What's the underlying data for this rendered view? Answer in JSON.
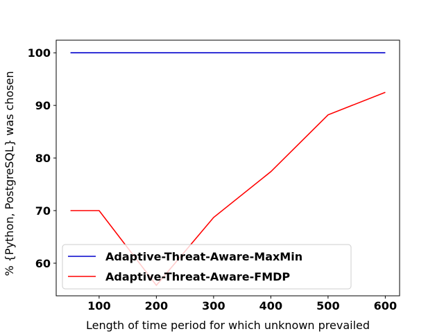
{
  "chart_data": {
    "type": "line",
    "title": "",
    "xlabel": "Length of time period for which unknown prevailed",
    "ylabel": "% {Python, PostgreSQL} was chosen",
    "xlim": [
      25,
      625
    ],
    "ylim": [
      53.8,
      102.4
    ],
    "xticks": [
      100,
      200,
      300,
      400,
      500,
      600
    ],
    "yticks": [
      60,
      70,
      80,
      90,
      100
    ],
    "grid": false,
    "legend_position": "lower-left",
    "series": [
      {
        "name": "Adaptive-Threat-Aware-MaxMin",
        "color": "#0000cc",
        "x": [
          50,
          100,
          200,
          300,
          400,
          500,
          600
        ],
        "y": [
          100,
          100,
          100,
          100,
          100,
          100,
          100
        ]
      },
      {
        "name": "Adaptive-Threat-Aware-FMDP",
        "color": "#ff0000",
        "x": [
          50,
          100,
          200,
          300,
          400,
          500,
          600
        ],
        "y": [
          70,
          70,
          55.8,
          68.7,
          77.4,
          88.2,
          92.5
        ]
      }
    ]
  }
}
